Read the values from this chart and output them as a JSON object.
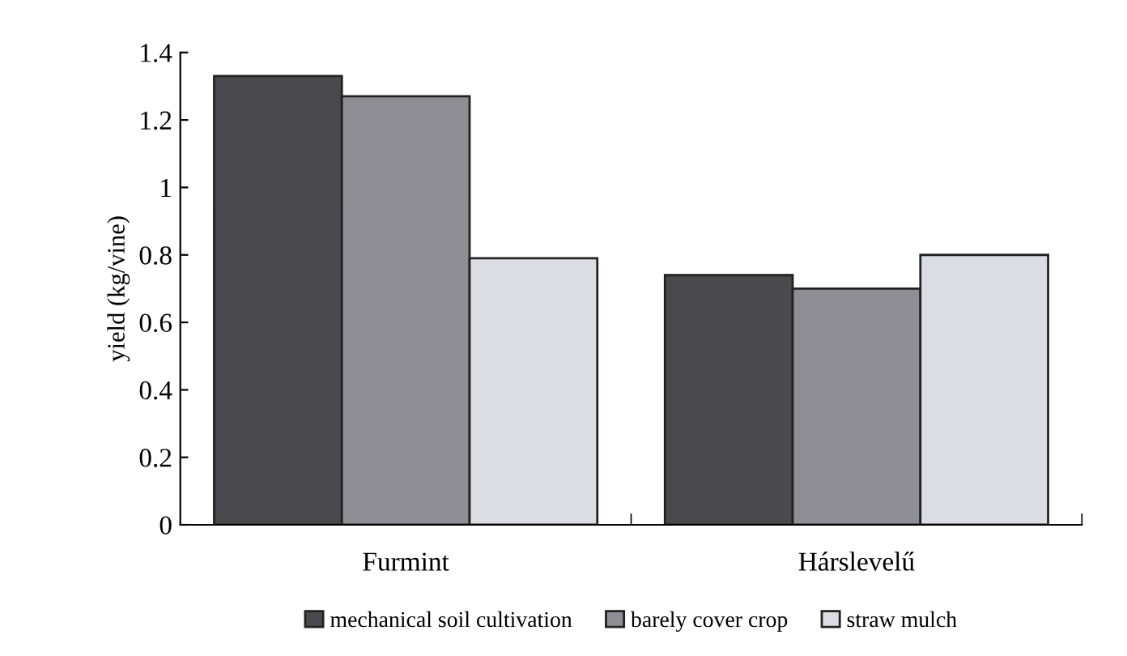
{
  "chart_data": {
    "type": "bar",
    "ylabel": "yield (kg/vine)",
    "categories": [
      "Furmint",
      "Hárslevelű"
    ],
    "series": [
      {
        "name": "mechanical soil cultivation",
        "color": "#4a4a4e",
        "values": [
          1.33,
          0.74
        ]
      },
      {
        "name": "barely cover crop",
        "color": "#8e8e94",
        "values": [
          1.27,
          0.7
        ]
      },
      {
        "name": "straw mulch",
        "color": "#dcdde3",
        "values": [
          0.79,
          0.8
        ]
      }
    ],
    "ylim": [
      0,
      1.4
    ],
    "yticks": [
      0,
      0.2,
      0.4,
      0.6,
      0.8,
      1,
      1.2,
      1.4
    ],
    "grid": false,
    "legend": "bottom"
  }
}
